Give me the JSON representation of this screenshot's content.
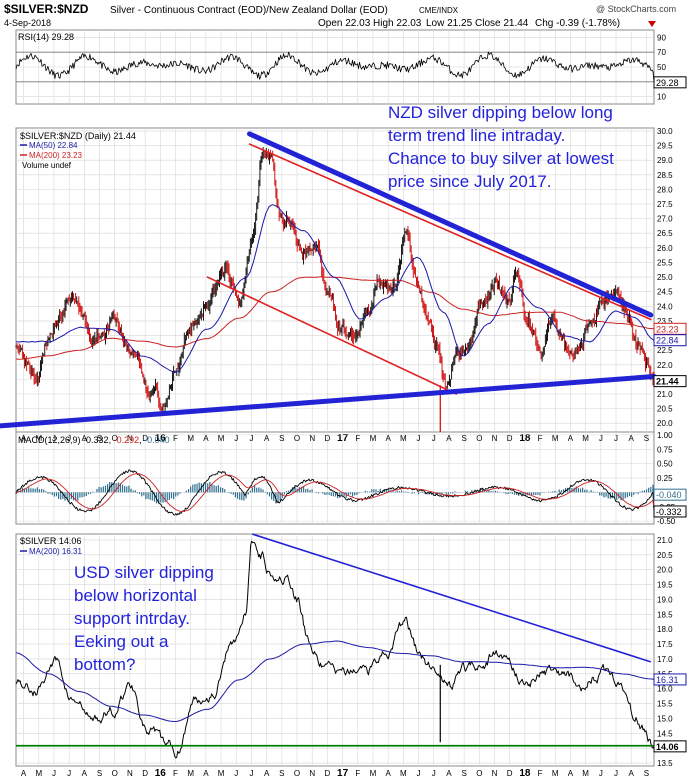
{
  "header": {
    "symbol": "$SILVER:$NZD",
    "description": "Silver - Continuous Contract (EOD)/New Zealand Dollar (EOD)",
    "exchange": "CME/INDX",
    "date": "4-Sep-2018",
    "open": "Open 22.03",
    "high": "High 22.03",
    "low": "Low 21.25",
    "close": "Close 21.44",
    "chg": "Chg -0.39 (-1.78%)",
    "watermark": "@ StockCharts.com"
  },
  "colors": {
    "price": "#000000",
    "down_bar": "#cc0000",
    "ma50": "#1a1aa8",
    "ma200": "#cc2222",
    "trend_blue": "#2323d6",
    "trend_red": "#e02020",
    "annotation_blue": "#2222dd",
    "support_green": "#008000",
    "macd_hist": "#2f6f8f",
    "grid": "#d6d6d6"
  },
  "x_axis": {
    "labels": [
      "A",
      "M",
      "J",
      "J",
      "A",
      "S",
      "O",
      "N",
      "D",
      "16",
      "F",
      "M",
      "A",
      "M",
      "J",
      "J",
      "A",
      "S",
      "O",
      "N",
      "D",
      "17",
      "F",
      "M",
      "A",
      "M",
      "J",
      "J",
      "A",
      "S",
      "O",
      "N",
      "D",
      "18",
      "F",
      "M",
      "A",
      "M",
      "J",
      "J",
      "A",
      "S"
    ],
    "bold_labels": [
      "16",
      "17",
      "18"
    ]
  },
  "chart_data": [
    {
      "id": "rsi",
      "type": "line",
      "title": "RSI(14) 29.28",
      "y_ticks": [
        90,
        70,
        50,
        30,
        10
      ],
      "ylim": [
        0,
        100
      ],
      "last_value": "29.28",
      "reference_lines": [
        70,
        30
      ]
    },
    {
      "id": "nzd_price",
      "type": "ohlc",
      "legend": [
        "$SILVER:$NZD (Daily) 21.44",
        "MA(50) 22.84",
        "MA(200) 23.23",
        "Volume undef"
      ],
      "y_ticks": [
        30.0,
        29.5,
        29.0,
        28.5,
        28.0,
        27.5,
        27.0,
        26.5,
        26.0,
        25.5,
        25.0,
        24.5,
        24.0,
        23.5,
        23.0,
        22.5,
        22.0,
        21.5,
        21.0,
        20.5,
        20.0
      ],
      "ylim": [
        19.7,
        30.1
      ],
      "last_labels": {
        "ma200": "23.23",
        "ma50": "22.84",
        "price": "21.44"
      },
      "anchors_price": [
        [
          0,
          22.8
        ],
        [
          0.03,
          22.1
        ],
        [
          0.06,
          23.3
        ],
        [
          0.09,
          24.2
        ],
        [
          0.12,
          22.7
        ],
        [
          0.15,
          23.6
        ],
        [
          0.18,
          22.4
        ],
        [
          0.21,
          21.2
        ],
        [
          0.235,
          20.6
        ],
        [
          0.25,
          21.6
        ],
        [
          0.28,
          23.4
        ],
        [
          0.3,
          24.3
        ],
        [
          0.33,
          25.2
        ],
        [
          0.35,
          24.0
        ],
        [
          0.37,
          26.6
        ],
        [
          0.385,
          29.3
        ],
        [
          0.4,
          29.0
        ],
        [
          0.415,
          26.8
        ],
        [
          0.43,
          27.2
        ],
        [
          0.45,
          25.9
        ],
        [
          0.47,
          26.1
        ],
        [
          0.49,
          24.2
        ],
        [
          0.51,
          23.3
        ],
        [
          0.53,
          22.9
        ],
        [
          0.55,
          23.6
        ],
        [
          0.57,
          25.2
        ],
        [
          0.59,
          24.4
        ],
        [
          0.61,
          26.3
        ],
        [
          0.625,
          25.2
        ],
        [
          0.645,
          23.8
        ],
        [
          0.66,
          22.9
        ],
        [
          0.675,
          21.2
        ],
        [
          0.69,
          22.6
        ],
        [
          0.71,
          22.8
        ],
        [
          0.73,
          24.3
        ],
        [
          0.75,
          24.9
        ],
        [
          0.77,
          24.0
        ],
        [
          0.785,
          25.1
        ],
        [
          0.8,
          23.8
        ],
        [
          0.82,
          22.8
        ],
        [
          0.84,
          23.5
        ],
        [
          0.86,
          22.6
        ],
        [
          0.88,
          22.5
        ],
        [
          0.9,
          23.4
        ],
        [
          0.92,
          24.3
        ],
        [
          0.94,
          24.6
        ],
        [
          0.96,
          23.8
        ],
        [
          0.975,
          22.6
        ],
        [
          0.99,
          22.0
        ],
        [
          1.0,
          21.44
        ]
      ],
      "anchors_ma50": [
        [
          0,
          22.8
        ],
        [
          0.05,
          22.8
        ],
        [
          0.1,
          23.3
        ],
        [
          0.15,
          23.2
        ],
        [
          0.2,
          22.3
        ],
        [
          0.25,
          21.8
        ],
        [
          0.3,
          23.2
        ],
        [
          0.36,
          25.0
        ],
        [
          0.4,
          27.5
        ],
        [
          0.45,
          26.6
        ],
        [
          0.5,
          25.0
        ],
        [
          0.54,
          23.6
        ],
        [
          0.58,
          24.3
        ],
        [
          0.63,
          25.7
        ],
        [
          0.67,
          23.8
        ],
        [
          0.7,
          22.3
        ],
        [
          0.74,
          23.4
        ],
        [
          0.78,
          24.7
        ],
        [
          0.82,
          23.9
        ],
        [
          0.86,
          23.0
        ],
        [
          0.9,
          22.8
        ],
        [
          0.94,
          23.8
        ],
        [
          0.97,
          23.6
        ],
        [
          1.0,
          22.84
        ]
      ],
      "anchors_ma200": [
        [
          0,
          22.2
        ],
        [
          0.05,
          22.3
        ],
        [
          0.1,
          22.5
        ],
        [
          0.15,
          22.9
        ],
        [
          0.2,
          22.8
        ],
        [
          0.25,
          22.6
        ],
        [
          0.3,
          22.9
        ],
        [
          0.35,
          23.6
        ],
        [
          0.4,
          24.5
        ],
        [
          0.45,
          25.0
        ],
        [
          0.5,
          25.0
        ],
        [
          0.55,
          24.9
        ],
        [
          0.6,
          24.9
        ],
        [
          0.65,
          24.5
        ],
        [
          0.7,
          23.9
        ],
        [
          0.75,
          23.7
        ],
        [
          0.8,
          23.8
        ],
        [
          0.85,
          23.8
        ],
        [
          0.9,
          23.5
        ],
        [
          0.95,
          23.4
        ],
        [
          1.0,
          23.23
        ]
      ],
      "trendlines": [
        {
          "kind": "blue_upper",
          "from": [
            0.366,
            29.9
          ],
          "to": [
            0.995,
            23.7
          ]
        },
        {
          "kind": "red_upper",
          "from": [
            0.366,
            29.55
          ],
          "to": [
            0.995,
            23.55
          ]
        },
        {
          "kind": "red_channel",
          "from": [
            0.3,
            25.0
          ],
          "to": [
            0.69,
            21.0
          ]
        },
        {
          "kind": "blue_lower",
          "from": [
            -0.03,
            19.9
          ],
          "to": [
            1.0,
            21.6
          ]
        }
      ],
      "spike": {
        "x": 0.665,
        "low": 19.7,
        "high": 21.3
      },
      "annotation": "NZD silver dipping below long term trend line intraday. Chance to buy silver at lowest price since July 2017."
    },
    {
      "id": "macd",
      "type": "line",
      "title": "MACD(12,26,9) -0.332, -0.292, -0.040",
      "title_parts": {
        "prefix": "MACD(12,26,9) ",
        "macd": "-0.332",
        "signal": "-0.292",
        "hist": "-0.040"
      },
      "y_ticks": [
        1.0,
        0.75,
        0.5,
        0.25,
        0.0,
        -0.25,
        -0.5
      ],
      "y_tick_labels": [
        "1.00",
        "0.75",
        "0.50",
        "0.25",
        "0.00",
        "-0.25",
        "-0.50"
      ],
      "ylim": [
        -0.55,
        1.05
      ],
      "last_labels": {
        "hist": "-0.040",
        "macd": "-0.332"
      }
    },
    {
      "id": "usd_price",
      "type": "line",
      "legend": [
        "$SILVER 14.06",
        "MA(200) 16.31"
      ],
      "y_ticks": [
        21.0,
        20.5,
        20.0,
        19.5,
        19.0,
        18.5,
        18.0,
        17.5,
        17.0,
        16.5,
        16.0,
        15.5,
        15.0,
        14.5,
        14.0,
        13.5
      ],
      "ylim": [
        13.4,
        21.2
      ],
      "last_labels": {
        "ma200": "16.31",
        "price": "14.06"
      },
      "anchors_price": [
        [
          0,
          16.3
        ],
        [
          0.03,
          16.0
        ],
        [
          0.06,
          16.9
        ],
        [
          0.09,
          15.6
        ],
        [
          0.12,
          14.9
        ],
        [
          0.15,
          15.2
        ],
        [
          0.18,
          16.1
        ],
        [
          0.21,
          14.5
        ],
        [
          0.235,
          14.0
        ],
        [
          0.25,
          13.9
        ],
        [
          0.28,
          15.6
        ],
        [
          0.31,
          16.0
        ],
        [
          0.34,
          17.7
        ],
        [
          0.36,
          18.5
        ],
        [
          0.37,
          21.0
        ],
        [
          0.385,
          20.6
        ],
        [
          0.4,
          20.0
        ],
        [
          0.42,
          19.9
        ],
        [
          0.44,
          18.9
        ],
        [
          0.46,
          17.5
        ],
        [
          0.48,
          16.8
        ],
        [
          0.5,
          16.5
        ],
        [
          0.52,
          16.4
        ],
        [
          0.55,
          16.7
        ],
        [
          0.58,
          17.3
        ],
        [
          0.61,
          18.2
        ],
        [
          0.63,
          17.2
        ],
        [
          0.65,
          16.8
        ],
        [
          0.66,
          16.6
        ],
        [
          0.68,
          16.1
        ],
        [
          0.7,
          16.6
        ],
        [
          0.73,
          16.9
        ],
        [
          0.75,
          17.2
        ],
        [
          0.77,
          16.9
        ],
        [
          0.8,
          16.2
        ],
        [
          0.83,
          16.6
        ],
        [
          0.86,
          16.4
        ],
        [
          0.89,
          16.3
        ],
        [
          0.91,
          16.5
        ],
        [
          0.93,
          16.6
        ],
        [
          0.95,
          16.2
        ],
        [
          0.97,
          15.2
        ],
        [
          0.985,
          14.7
        ],
        [
          1.0,
          14.06
        ]
      ],
      "anchors_ma200": [
        [
          0,
          17.2
        ],
        [
          0.05,
          16.5
        ],
        [
          0.1,
          15.9
        ],
        [
          0.15,
          15.4
        ],
        [
          0.2,
          15.1
        ],
        [
          0.25,
          14.9
        ],
        [
          0.3,
          15.3
        ],
        [
          0.35,
          16.3
        ],
        [
          0.4,
          17.0
        ],
        [
          0.45,
          17.5
        ],
        [
          0.5,
          17.6
        ],
        [
          0.55,
          17.4
        ],
        [
          0.6,
          17.2
        ],
        [
          0.65,
          17.1
        ],
        [
          0.7,
          16.9
        ],
        [
          0.75,
          16.9
        ],
        [
          0.8,
          16.8
        ],
        [
          0.85,
          16.7
        ],
        [
          0.9,
          16.7
        ],
        [
          0.95,
          16.5
        ],
        [
          1.0,
          16.31
        ]
      ],
      "trendlines": [
        {
          "kind": "blue_upper",
          "from": [
            0.37,
            21.2
          ],
          "to": [
            0.995,
            16.9
          ]
        },
        {
          "kind": "green_support",
          "from": [
            0.0,
            14.08
          ],
          "to": [
            1.0,
            14.08
          ]
        }
      ],
      "spike": {
        "x": 0.665,
        "low": 14.2,
        "high": 16.8
      },
      "annotation": "USD silver dipping below horizontal support intrday. Eeking out a bottom?"
    }
  ]
}
